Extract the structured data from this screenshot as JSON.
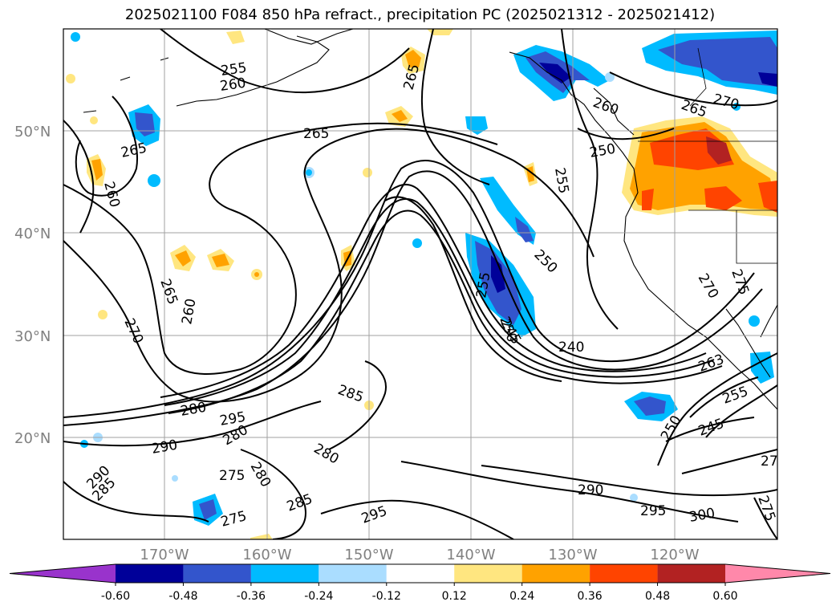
{
  "title": "2025021100 F084 850 hPa refract., precipitation PC (2025021312 - 2025021412)",
  "lat_labels": [
    "50°N",
    "40°N",
    "30°N",
    "20°N"
  ],
  "lon_labels": [
    "170°W",
    "160°W",
    "150°W",
    "140°W",
    "130°W",
    "120°W"
  ],
  "contour_labels": [
    "255",
    "260",
    "265",
    "265",
    "260",
    "265",
    "270",
    "260",
    "265",
    "270",
    "265",
    "260",
    "250",
    "255",
    "250",
    "255",
    "245",
    "240",
    "250",
    "270",
    "275",
    "263",
    "255",
    "245",
    "250",
    "27",
    "275",
    "280",
    "295",
    "290",
    "285",
    "290",
    "285",
    "280",
    "275",
    "280",
    "280",
    "275",
    "285",
    "295",
    "290",
    "295",
    "300"
  ],
  "colorbar": {
    "ticks": [
      "-0.60",
      "-0.48",
      "-0.36",
      "-0.24",
      "-0.12",
      "0.12",
      "0.24",
      "0.36",
      "0.48",
      "0.60"
    ],
    "colors": [
      "#9933cc",
      "#000099",
      "#3355cc",
      "#00bbff",
      "#aaddff",
      "#ffffff",
      "#ffe680",
      "#ffa200",
      "#ff4400",
      "#b22222",
      "#ff88aa"
    ]
  }
}
